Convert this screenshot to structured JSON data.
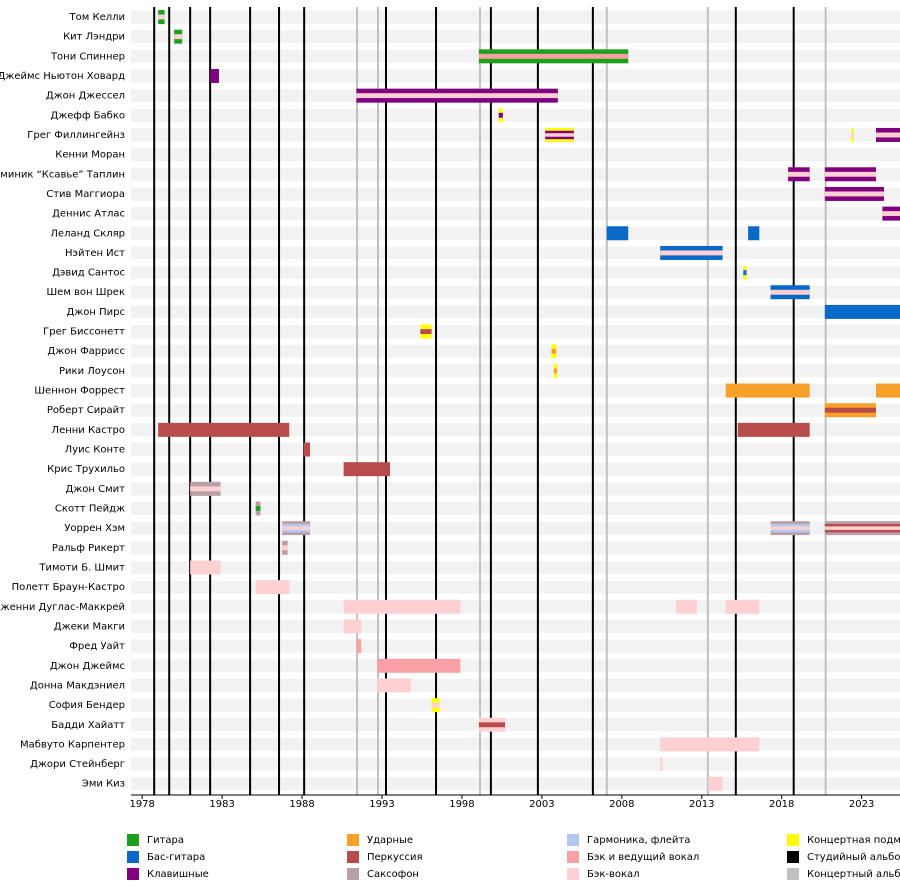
{
  "chart_data": {
    "type": "timeline",
    "xlim": [
      1977.3,
      2025.4
    ],
    "xticks": [
      1978,
      1983,
      1988,
      1993,
      1998,
      2003,
      2008,
      2013,
      2018,
      2023
    ],
    "legend": [
      {
        "name": "Гитара",
        "color": "#1ea01e"
      },
      {
        "name": "Бас-гитара",
        "color": "#0a68c8"
      },
      {
        "name": "Клавишные",
        "color": "#800080"
      },
      {
        "name": "Ударные",
        "color": "#f6a02a"
      },
      {
        "name": "Перкуссия",
        "color": "#b84c4c"
      },
      {
        "name": "Саксофон",
        "color": "#b8a0a6"
      },
      {
        "name": "Гармоника, флейта",
        "color": "#b4c8f4"
      },
      {
        "name": "Бэк и ведущий вокал",
        "color": "#f8a0a4"
      },
      {
        "name": "Бэк-вокал",
        "color": "#ffd0d2"
      },
      {
        "name": "Концертная подмена",
        "color": "#ffff00"
      },
      {
        "name": "Студийный альбом",
        "color": "#000000"
      },
      {
        "name": "Концертный альбом",
        "color": "#c0c0c0"
      }
    ],
    "studio_albums": [
      1978.75,
      1979.69,
      1981.0,
      1982.25,
      1984.75,
      1986.56,
      1988.13,
      1993.25,
      1996.38,
      1999.81,
      2002.75,
      2006.19,
      2015.13,
      2018.75
    ],
    "live_albums": [
      1991.44,
      1992.75,
      1999.13,
      2007.06,
      2013.38,
      2020.75
    ],
    "members": [
      {
        "name": "Том Келли",
        "bars": [
          {
            "start": 1979.0,
            "end": 1979.4,
            "roles": [
              0,
              8
            ]
          }
        ]
      },
      {
        "name": "Кит Лэндри",
        "bars": [
          {
            "start": 1980.0,
            "end": 1980.5,
            "roles": [
              0,
              8
            ]
          }
        ]
      },
      {
        "name": "Тони Спиннер",
        "bars": [
          {
            "start": 1999.06,
            "end": 2008.4,
            "roles": [
              0,
              7
            ]
          }
        ]
      },
      {
        "name": "Джеймс Ньютон Ховард",
        "bars": [
          {
            "start": 1982.25,
            "end": 1982.8,
            "roles": [
              2
            ]
          }
        ]
      },
      {
        "name": "Джон Джессел",
        "bars": [
          {
            "start": 1991.4,
            "end": 2004.0,
            "roles": [
              2,
              8
            ]
          }
        ]
      },
      {
        "name": "Джефф Бабко",
        "bars": [
          {
            "start": 2000.3,
            "end": 2000.56,
            "roles": [
              9,
              2
            ]
          }
        ]
      },
      {
        "name": "Грег Филлингейнз",
        "bars": [
          {
            "start": 2003.2,
            "end": 2005.0,
            "roles": [
              9,
              2,
              8
            ]
          },
          {
            "start": 2022.35,
            "end": 2022.5,
            "roles": [
              9,
              8
            ]
          },
          {
            "start": 2023.9,
            "end": 2025.4,
            "roles": [
              2,
              8
            ]
          }
        ]
      },
      {
        "name": "Кенни Моран",
        "bars": []
      },
      {
        "name": "Доминик “Ксавье” Таплин",
        "bars": [
          {
            "start": 2018.4,
            "end": 2019.75,
            "roles": [
              2,
              8
            ]
          },
          {
            "start": 2020.7,
            "end": 2023.9,
            "roles": [
              2,
              8
            ]
          }
        ]
      },
      {
        "name": "Стив Маггиора",
        "bars": [
          {
            "start": 2020.7,
            "end": 2024.4,
            "roles": [
              2,
              8
            ]
          }
        ]
      },
      {
        "name": "Деннис Атлас",
        "bars": [
          {
            "start": 2024.3,
            "end": 2025.4,
            "roles": [
              2,
              8
            ]
          }
        ]
      },
      {
        "name": "Леланд Скляр",
        "bars": [
          {
            "start": 2007.06,
            "end": 2008.4,
            "roles": [
              1
            ]
          },
          {
            "start": 2015.9,
            "end": 2016.6,
            "roles": [
              1
            ]
          }
        ]
      },
      {
        "name": "Нэйтен Ист",
        "bars": [
          {
            "start": 2010.4,
            "end": 2014.3,
            "roles": [
              1,
              8
            ]
          }
        ]
      },
      {
        "name": "Дэвид Сантос",
        "bars": [
          {
            "start": 2015.6,
            "end": 2015.8,
            "roles": [
              9,
              1
            ]
          }
        ]
      },
      {
        "name": "Шем вон Шрек",
        "bars": [
          {
            "start": 2017.3,
            "end": 2019.75,
            "roles": [
              1,
              8
            ]
          }
        ]
      },
      {
        "name": "Джон Пирс",
        "bars": [
          {
            "start": 2020.7,
            "end": 2025.4,
            "roles": [
              1
            ]
          }
        ]
      },
      {
        "name": "Грег Биссонетт",
        "bars": [
          {
            "start": 1995.4,
            "end": 1996.1,
            "roles": [
              9,
              4
            ]
          }
        ]
      },
      {
        "name": "Джон Фаррисс",
        "bars": [
          {
            "start": 2003.6,
            "end": 2003.9,
            "roles": [
              9,
              3
            ]
          }
        ]
      },
      {
        "name": "Рики Лоусон",
        "bars": [
          {
            "start": 2003.75,
            "end": 2003.95,
            "roles": [
              9,
              3
            ]
          }
        ]
      },
      {
        "name": "Шеннон Форрест",
        "bars": [
          {
            "start": 2014.5,
            "end": 2019.75,
            "roles": [
              3
            ]
          },
          {
            "start": 2023.9,
            "end": 2025.4,
            "roles": [
              3
            ]
          }
        ]
      },
      {
        "name": "Роберт Сирайт",
        "bars": [
          {
            "start": 2020.7,
            "end": 2023.9,
            "roles": [
              3,
              4
            ]
          }
        ]
      },
      {
        "name": "Ленни Кастро",
        "bars": [
          {
            "start": 1979.0,
            "end": 1987.2,
            "roles": [
              4
            ]
          },
          {
            "start": 2015.25,
            "end": 2019.75,
            "roles": [
              4
            ]
          }
        ]
      },
      {
        "name": "Луис Конте",
        "bars": [
          {
            "start": 1988.1,
            "end": 1988.5,
            "roles": [
              4
            ]
          }
        ]
      },
      {
        "name": "Крис Трухильо",
        "bars": [
          {
            "start": 1990.6,
            "end": 1993.5,
            "roles": [
              4
            ]
          }
        ]
      },
      {
        "name": "Джон Смит",
        "bars": [
          {
            "start": 1981.0,
            "end": 1982.9,
            "roles": [
              5,
              8
            ]
          }
        ]
      },
      {
        "name": "Скотт Пейдж",
        "bars": [
          {
            "start": 1985.1,
            "end": 1985.4,
            "roles": [
              5,
              0
            ]
          }
        ]
      },
      {
        "name": "Уоррен Хэм",
        "bars": [
          {
            "start": 1986.75,
            "end": 1988.5,
            "roles": [
              5,
              6,
              8
            ]
          },
          {
            "start": 2017.3,
            "end": 2019.75,
            "roles": [
              5,
              6,
              8
            ]
          },
          {
            "start": 2020.7,
            "end": 2025.4,
            "roles": [
              5,
              4,
              8
            ]
          }
        ]
      },
      {
        "name": "Ральф Рикерт",
        "bars": [
          {
            "start": 1986.75,
            "end": 1987.1,
            "roles": [
              5,
              8
            ]
          }
        ]
      },
      {
        "name": "Тимоти Б. Шмит",
        "bars": [
          {
            "start": 1981.0,
            "end": 1982.9,
            "roles": [
              8
            ]
          }
        ]
      },
      {
        "name": "Полетт Браун-Кастро",
        "bars": [
          {
            "start": 1985.1,
            "end": 1987.2,
            "roles": [
              8
            ]
          }
        ]
      },
      {
        "name": "Дженни Дуглас-Маккрей",
        "bars": [
          {
            "start": 1990.6,
            "end": 1997.9,
            "roles": [
              8
            ]
          },
          {
            "start": 2011.4,
            "end": 2012.7,
            "roles": [
              8
            ]
          },
          {
            "start": 2014.5,
            "end": 2016.6,
            "roles": [
              8
            ]
          }
        ]
      },
      {
        "name": "Джеки Макги",
        "bars": [
          {
            "start": 1990.6,
            "end": 1991.7,
            "roles": [
              8
            ]
          }
        ]
      },
      {
        "name": "Фред Уайт",
        "bars": [
          {
            "start": 1991.4,
            "end": 1991.7,
            "roles": [
              7
            ]
          }
        ]
      },
      {
        "name": "Джон Джеймс",
        "bars": [
          {
            "start": 1992.7,
            "end": 1997.9,
            "roles": [
              7
            ]
          }
        ]
      },
      {
        "name": "Донна Макдэниел",
        "bars": [
          {
            "start": 1992.7,
            "end": 1994.8,
            "roles": [
              8
            ]
          }
        ]
      },
      {
        "name": "София Бендер",
        "bars": [
          {
            "start": 1996.1,
            "end": 1996.6,
            "roles": [
              9,
              8
            ]
          }
        ]
      },
      {
        "name": "Бадди Хайатт",
        "bars": [
          {
            "start": 1999.06,
            "end": 2000.7,
            "roles": [
              8,
              4
            ]
          }
        ]
      },
      {
        "name": "Мабвуто Карпентер",
        "bars": [
          {
            "start": 2010.4,
            "end": 2016.6,
            "roles": [
              8
            ]
          }
        ]
      },
      {
        "name": "Джори Стейнберг",
        "bars": [
          {
            "start": 2010.4,
            "end": 2010.55,
            "roles": [
              8
            ]
          }
        ]
      },
      {
        "name": "Эми Киз",
        "bars": [
          {
            "start": 2013.4,
            "end": 2014.3,
            "roles": [
              8
            ]
          }
        ]
      }
    ]
  }
}
